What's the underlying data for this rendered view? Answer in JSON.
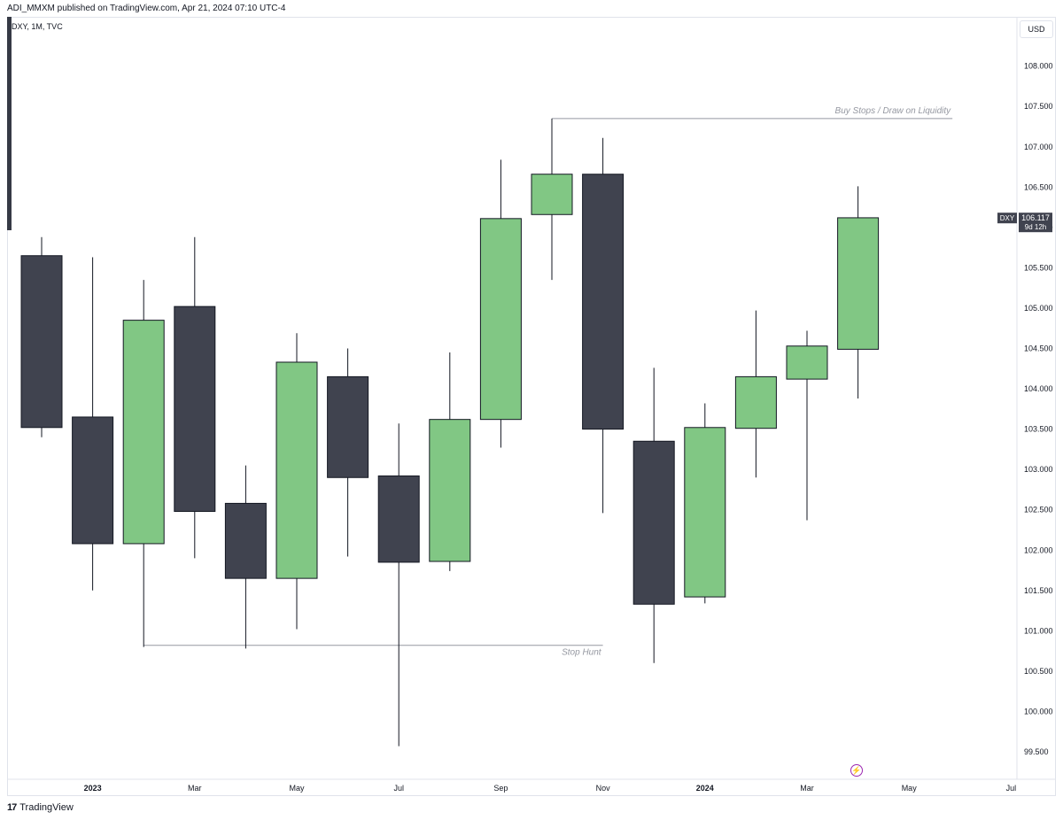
{
  "header": {
    "publisher_line": "ADI_MMXM published on TradingView.com, Apr 21, 2024 07:10 UTC-4"
  },
  "symbol": {
    "info": "DXY, 1M, TVC"
  },
  "currency": {
    "label": "USD"
  },
  "price_label": {
    "symbol": "DXY",
    "value": "106.117",
    "countdown": "9d 12h"
  },
  "footer": {
    "logo_glyph": "17",
    "brand": "TradingView"
  },
  "colors": {
    "bull": "#81c784",
    "bear": "#40434f",
    "outline": "#131722",
    "annotation": "#9598a1",
    "bolt": "#9c27b0"
  },
  "chart_data": {
    "type": "candlestick",
    "title": "DXY, 1M, TVC",
    "y_axis": {
      "ylim": [
        99.3,
        108.6
      ],
      "ticks": [
        108.0,
        107.5,
        107.0,
        106.5,
        106.0,
        105.5,
        105.0,
        104.5,
        104.0,
        103.5,
        103.0,
        102.5,
        102.0,
        101.5,
        101.0,
        100.5,
        100.0,
        99.5
      ],
      "tick_labels": [
        "108.000",
        "107.500",
        "107.000",
        "106.500",
        "106.000",
        "105.500",
        "105.000",
        "104.500",
        "104.000",
        "103.500",
        "103.000",
        "102.500",
        "102.000",
        "101.500",
        "101.000",
        "100.500",
        "100.000",
        "99.500"
      ]
    },
    "x_axis": {
      "labels": [
        {
          "text": "2023",
          "index": 1,
          "bold": true
        },
        {
          "text": "Mar",
          "index": 3,
          "bold": false
        },
        {
          "text": "May",
          "index": 5,
          "bold": false
        },
        {
          "text": "Jul",
          "index": 7,
          "bold": false
        },
        {
          "text": "Sep",
          "index": 9,
          "bold": false
        },
        {
          "text": "Nov",
          "index": 11,
          "bold": false
        },
        {
          "text": "2024",
          "index": 13,
          "bold": true
        },
        {
          "text": "Mar",
          "index": 15,
          "bold": false
        },
        {
          "text": "May",
          "index": 17,
          "bold": false
        },
        {
          "text": "Jul",
          "index": 19,
          "bold": false
        }
      ]
    },
    "candles": [
      {
        "index": 0,
        "open": 105.65,
        "high": 105.88,
        "low": 103.4,
        "close": 103.52
      },
      {
        "index": 1,
        "open": 103.65,
        "high": 105.63,
        "low": 101.5,
        "close": 102.08
      },
      {
        "index": 2,
        "open": 102.08,
        "high": 105.35,
        "low": 100.8,
        "close": 104.85
      },
      {
        "index": 3,
        "open": 105.02,
        "high": 105.88,
        "low": 101.9,
        "close": 102.48
      },
      {
        "index": 4,
        "open": 102.58,
        "high": 103.05,
        "low": 100.78,
        "close": 101.65
      },
      {
        "index": 5,
        "open": 101.65,
        "high": 104.69,
        "low": 101.02,
        "close": 104.33
      },
      {
        "index": 6,
        "open": 104.15,
        "high": 104.5,
        "low": 101.92,
        "close": 102.9
      },
      {
        "index": 7,
        "open": 102.92,
        "high": 103.57,
        "low": 99.57,
        "close": 101.85
      },
      {
        "index": 8,
        "open": 101.86,
        "high": 104.45,
        "low": 101.74,
        "close": 103.62
      },
      {
        "index": 9,
        "open": 103.62,
        "high": 106.84,
        "low": 103.27,
        "close": 106.11
      },
      {
        "index": 10,
        "open": 106.16,
        "high": 107.35,
        "low": 105.35,
        "close": 106.66
      },
      {
        "index": 11,
        "open": 106.66,
        "high": 107.11,
        "low": 102.46,
        "close": 103.5
      },
      {
        "index": 12,
        "open": 103.35,
        "high": 104.26,
        "low": 100.6,
        "close": 101.33
      },
      {
        "index": 13,
        "open": 101.42,
        "high": 103.82,
        "low": 101.34,
        "close": 103.52
      },
      {
        "index": 14,
        "open": 103.51,
        "high": 104.97,
        "low": 102.9,
        "close": 104.15
      },
      {
        "index": 15,
        "open": 104.12,
        "high": 104.72,
        "low": 102.37,
        "close": 104.53
      },
      {
        "index": 16,
        "open": 104.49,
        "high": 106.51,
        "low": 103.88,
        "close": 106.12
      }
    ],
    "annotations": [
      {
        "text": "Buy Stops  / Draw on Liquidity",
        "price": 107.35,
        "from_index": 10,
        "to_index": 17.85
      },
      {
        "text": "Stop Hunt",
        "price": 100.82,
        "from_index": 2,
        "to_index": 11
      }
    ],
    "last_price": 106.117
  }
}
